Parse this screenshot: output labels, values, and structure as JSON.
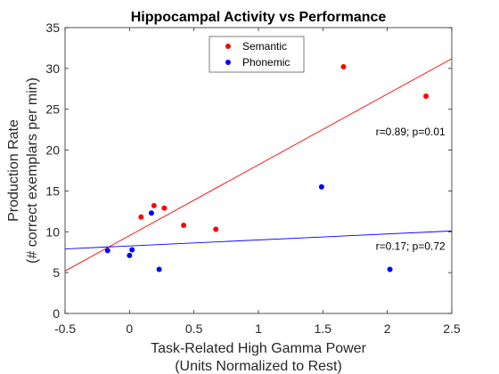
{
  "chart_data": {
    "type": "scatter",
    "title": "Hippocampal Activity vs Performance",
    "xlabel": [
      "Task-Related High Gamma Power",
      "(Units Normalized to Rest)"
    ],
    "ylabel": [
      "Production Rate",
      "(# correct exemplars per min)"
    ],
    "xlim": [
      -0.5,
      2.5
    ],
    "ylim": [
      0,
      35
    ],
    "xticks": [
      "-0.5",
      "0",
      "0.5",
      "1",
      "1.5",
      "2",
      "2.5"
    ],
    "yticks": [
      "0",
      "5",
      "10",
      "15",
      "20",
      "25",
      "30",
      "35"
    ],
    "grid": false,
    "legend_position": "top-center",
    "series": [
      {
        "name": "Semantic",
        "color": "#ff0000",
        "x": [
          0.09,
          0.19,
          0.27,
          0.42,
          0.67,
          1.66,
          2.3
        ],
        "y": [
          11.8,
          13.2,
          12.9,
          10.8,
          10.3,
          30.2,
          26.6
        ],
        "fit": {
          "x": [
            -0.5,
            2.5
          ],
          "y": [
            5.2,
            31.2
          ]
        },
        "annotation": {
          "text": "r=0.89; p=0.01",
          "x": 2.18,
          "y": 21.8
        }
      },
      {
        "name": "Phonemic",
        "color": "#0000ff",
        "x": [
          -0.17,
          0.0,
          0.02,
          0.17,
          0.23,
          1.49,
          2.02
        ],
        "y": [
          7.7,
          7.1,
          7.8,
          12.3,
          5.4,
          15.5,
          5.4
        ],
        "fit": {
          "x": [
            -0.5,
            2.5
          ],
          "y": [
            7.9,
            10.1
          ]
        },
        "annotation": {
          "text": "r=0.17; p=0.72",
          "x": 2.18,
          "y": 7.8
        }
      }
    ]
  }
}
